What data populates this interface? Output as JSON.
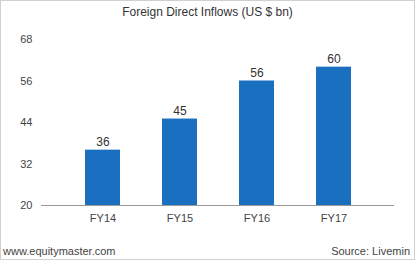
{
  "chart_data": {
    "type": "bar",
    "title": "Foreign Direct Inflows (US $ bn)",
    "categories": [
      "FY14",
      "FY15",
      "FY16",
      "FY17"
    ],
    "values": [
      36,
      45,
      56,
      60
    ],
    "color": "#1a6fc1",
    "ylim": [
      20,
      68
    ],
    "yticks": [
      20,
      32,
      44,
      56,
      68
    ],
    "grid": false,
    "data_labels": true,
    "annotations": [
      "www.equitymaster.com",
      "Source: Livemin"
    ]
  }
}
